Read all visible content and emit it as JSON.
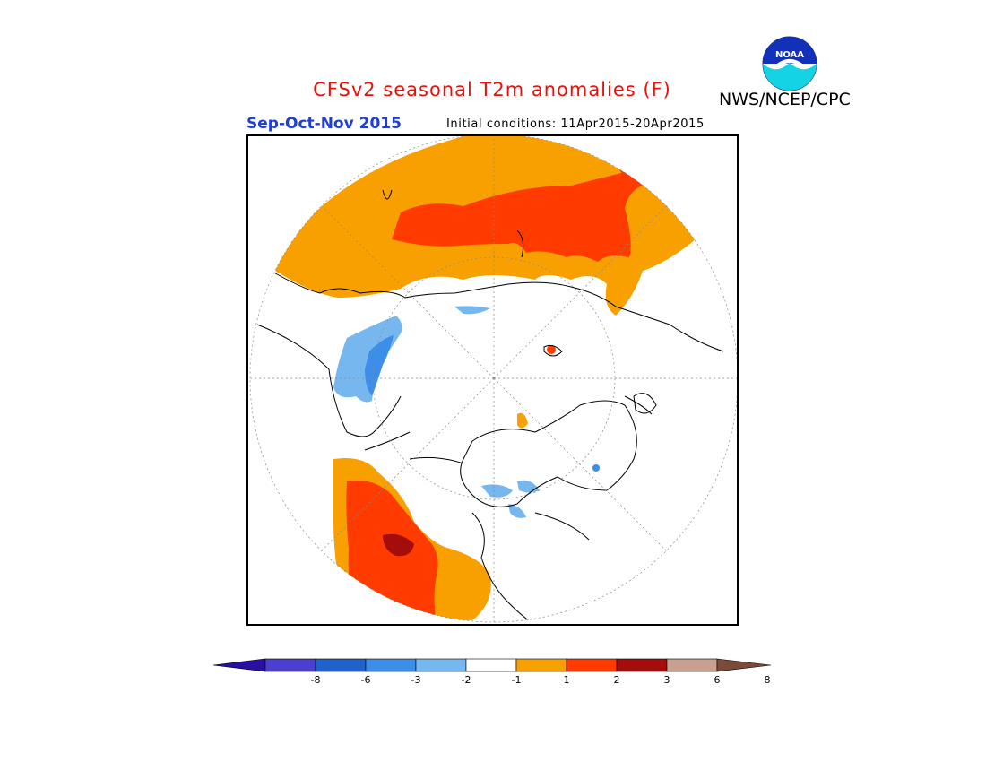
{
  "header": {
    "title": "CFSv2 seasonal T2m anomalies (F)",
    "title_color": "#e8120c",
    "agency": "NWS/NCEP/CPC",
    "logo_text": "NOAA",
    "season": "Sep-Oct-Nov 2015",
    "season_color": "#1e3fd6",
    "initial_conditions": "Initial conditions: 11Apr2015-20Apr2015"
  },
  "map": {
    "projection": "north polar stereographic",
    "regions": [
      {
        "name": "Eurasia-north",
        "category": "1 to 2"
      },
      {
        "name": "Siberia-central",
        "category": "2 to 3"
      },
      {
        "name": "Scandinavia-Baltic",
        "category": "-3 to -1"
      },
      {
        "name": "Northwest-Africa-Europe-south",
        "category": "-1 to 1"
      },
      {
        "name": "Western North America",
        "category": "2 to 3"
      },
      {
        "name": "Pacific Northwest coast",
        "category": "3 to 6"
      },
      {
        "name": "Canadian Arctic Archipelago",
        "category": "-2 to -1"
      },
      {
        "name": "Greenland",
        "category": "-1 to 1"
      }
    ]
  },
  "colorbar": {
    "ticks": [
      "-8",
      "-6",
      "-3",
      "-2",
      "-1",
      "1",
      "2",
      "3",
      "6",
      "8"
    ],
    "colors": [
      "#2a10a0",
      "#4b3fcf",
      "#1f62cc",
      "#3d8ee8",
      "#77b7f0",
      "#ffffff",
      "#f8a000",
      "#ff3b00",
      "#a50d0d",
      "#c8a090",
      "#7a4a3a"
    ]
  }
}
